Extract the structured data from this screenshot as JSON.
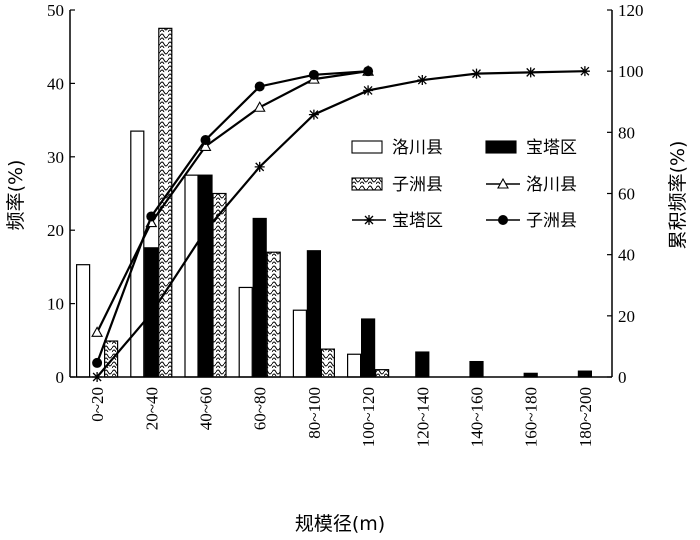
{
  "chart_data": {
    "type": "bar",
    "xlabel": "规模径(m)",
    "ylabel_left": "频率(%)",
    "ylabel_right": "累积频率(%)",
    "ylim_left": [
      0,
      50
    ],
    "ylim_right": [
      0,
      120
    ],
    "yticks_left": [
      "0",
      "10",
      "20",
      "30",
      "40",
      "50"
    ],
    "yticks_right": [
      "0",
      "20",
      "40",
      "60",
      "80",
      "100",
      "120"
    ],
    "categories": [
      "0~20",
      "20~40",
      "40~60",
      "60~80",
      "80~100",
      "100~120",
      "120~140",
      "140~160",
      "160~180",
      "180~200"
    ],
    "bar_series": [
      {
        "name": "洛川县",
        "values": [
          15.3,
          33.5,
          27.5,
          12.2,
          9.1,
          3.1,
          null,
          null,
          null,
          null
        ]
      },
      {
        "name": "宝塔区",
        "values": [
          null,
          17.6,
          27.5,
          21.6,
          17.2,
          7.9,
          3.4,
          2.1,
          0.5,
          0.8
        ]
      },
      {
        "name": "子洲县",
        "values": [
          4.9,
          47.5,
          25.0,
          17.0,
          3.8,
          1.0,
          null,
          null,
          null,
          null
        ]
      }
    ],
    "line_series": [
      {
        "name": "洛川县",
        "marker": "triangle",
        "points": [
          [
            0,
            14.6
          ],
          [
            1,
            50.5
          ],
          [
            2,
            75.4
          ],
          [
            3,
            88.2
          ],
          [
            4,
            97.4
          ],
          [
            5,
            100.0
          ]
        ]
      },
      {
        "name": "宝塔区",
        "marker": "star",
        "points": [
          [
            0,
            0
          ],
          [
            1,
            20.8
          ],
          [
            2,
            47.9
          ],
          [
            3,
            68.7
          ],
          [
            4,
            85.8
          ],
          [
            5,
            93.7
          ],
          [
            6,
            97.1
          ],
          [
            7,
            99.2
          ],
          [
            8,
            99.6
          ],
          [
            9,
            100.0
          ]
        ]
      },
      {
        "name": "子洲县",
        "marker": "circle",
        "points": [
          [
            0,
            4.6
          ],
          [
            1,
            52.5
          ],
          [
            2,
            77.5
          ],
          [
            3,
            95.0
          ],
          [
            4,
            98.8
          ],
          [
            5,
            100.0
          ]
        ]
      }
    ],
    "legend": [
      "洛川县",
      "宝塔区",
      "子洲县",
      "洛川县",
      "宝塔区",
      "子洲县"
    ],
    "legend_position": "right-center",
    "grid": false
  }
}
